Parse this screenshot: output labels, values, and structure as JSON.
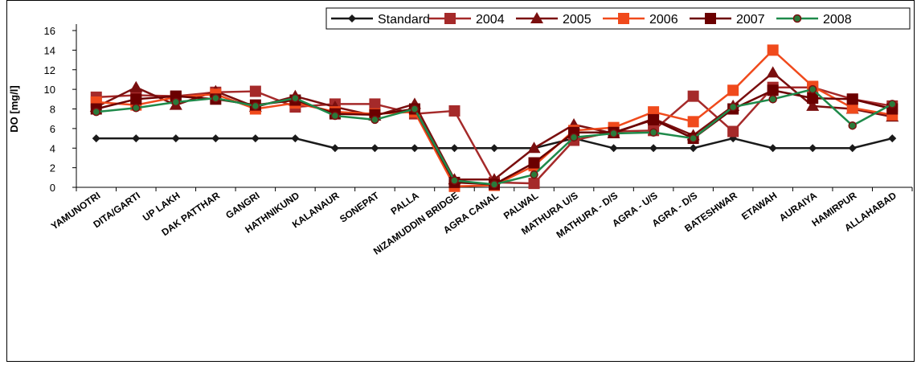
{
  "chart_data": {
    "type": "line",
    "ylabel": "DO [mg/l]",
    "ylim": [
      0,
      16
    ],
    "yticks": [
      0,
      2,
      4,
      6,
      8,
      10,
      12,
      14,
      16
    ],
    "grid": false,
    "legend_position": "top-right",
    "categories": [
      "YAMUNOTRI",
      "DITA/GARTI",
      "UP LAKH",
      "DAK PATTHAR",
      "GANGRI",
      "HATHNIKUND",
      "KALANAUR",
      "SONEPAT",
      "PALLA",
      "NIZAMUDDIN BRIDGE",
      "AGRA CANAL",
      "PALWAL",
      "MATHURA U/S",
      "MATHURA - D/S",
      "AGRA - U/S",
      "AGRA - D/S",
      "BATESHWAR",
      "ETAWAH",
      "AURAIYA",
      "HAMIRPUR",
      "ALLAHABAD"
    ],
    "series": [
      {
        "name": "Standard",
        "color": "#1a1a1a",
        "marker": "diamond",
        "values": [
          5,
          5,
          5,
          5,
          5,
          5,
          4,
          4,
          4,
          4,
          4,
          4,
          5,
          4,
          4,
          4,
          5,
          4,
          4,
          4,
          5
        ]
      },
      {
        "name": "2004",
        "color": "#a52a2a",
        "marker": "square",
        "values": [
          9.2,
          9.4,
          9.3,
          9.7,
          9.8,
          8.2,
          8.5,
          8.5,
          7.5,
          7.8,
          0.5,
          0.4,
          4.8,
          5.7,
          5.8,
          9.3,
          5.7,
          10.2,
          10.2,
          9.0,
          8.3
        ]
      },
      {
        "name": "2005",
        "color": "#7a0f0f",
        "marker": "triangle",
        "values": [
          8.2,
          10.2,
          8.4,
          9.8,
          8.2,
          9.3,
          8.2,
          7.3,
          8.5,
          0.8,
          0.8,
          4.0,
          6.4,
          5.5,
          7.0,
          5.3,
          8.3,
          11.7,
          8.3,
          8.0,
          7.2
        ]
      },
      {
        "name": "2006",
        "color": "#f04a1c",
        "marker": "square",
        "values": [
          8.7,
          8.4,
          9.2,
          9.5,
          8.0,
          8.6,
          7.7,
          7.5,
          7.7,
          0.1,
          0.2,
          2.2,
          5.8,
          6.1,
          7.7,
          6.7,
          9.9,
          14.0,
          10.3,
          8.1,
          7.4
        ]
      },
      {
        "name": "2007",
        "color": "#6b0000",
        "marker": "square",
        "values": [
          8.0,
          9.0,
          9.3,
          9.0,
          8.4,
          8.9,
          7.5,
          7.4,
          8.0,
          0.5,
          0.3,
          2.5,
          5.6,
          5.6,
          6.9,
          5.0,
          8.0,
          9.9,
          9.1,
          9.0,
          8.0
        ]
      },
      {
        "name": "2008",
        "color": "#1e8a4a",
        "marker": "circle",
        "values": [
          7.7,
          8.1,
          8.7,
          9.1,
          8.3,
          9.1,
          7.3,
          6.9,
          8.0,
          0.7,
          0.3,
          1.3,
          5.1,
          5.5,
          5.6,
          5.0,
          8.2,
          9.0,
          10.0,
          6.3,
          8.5
        ]
      }
    ]
  }
}
